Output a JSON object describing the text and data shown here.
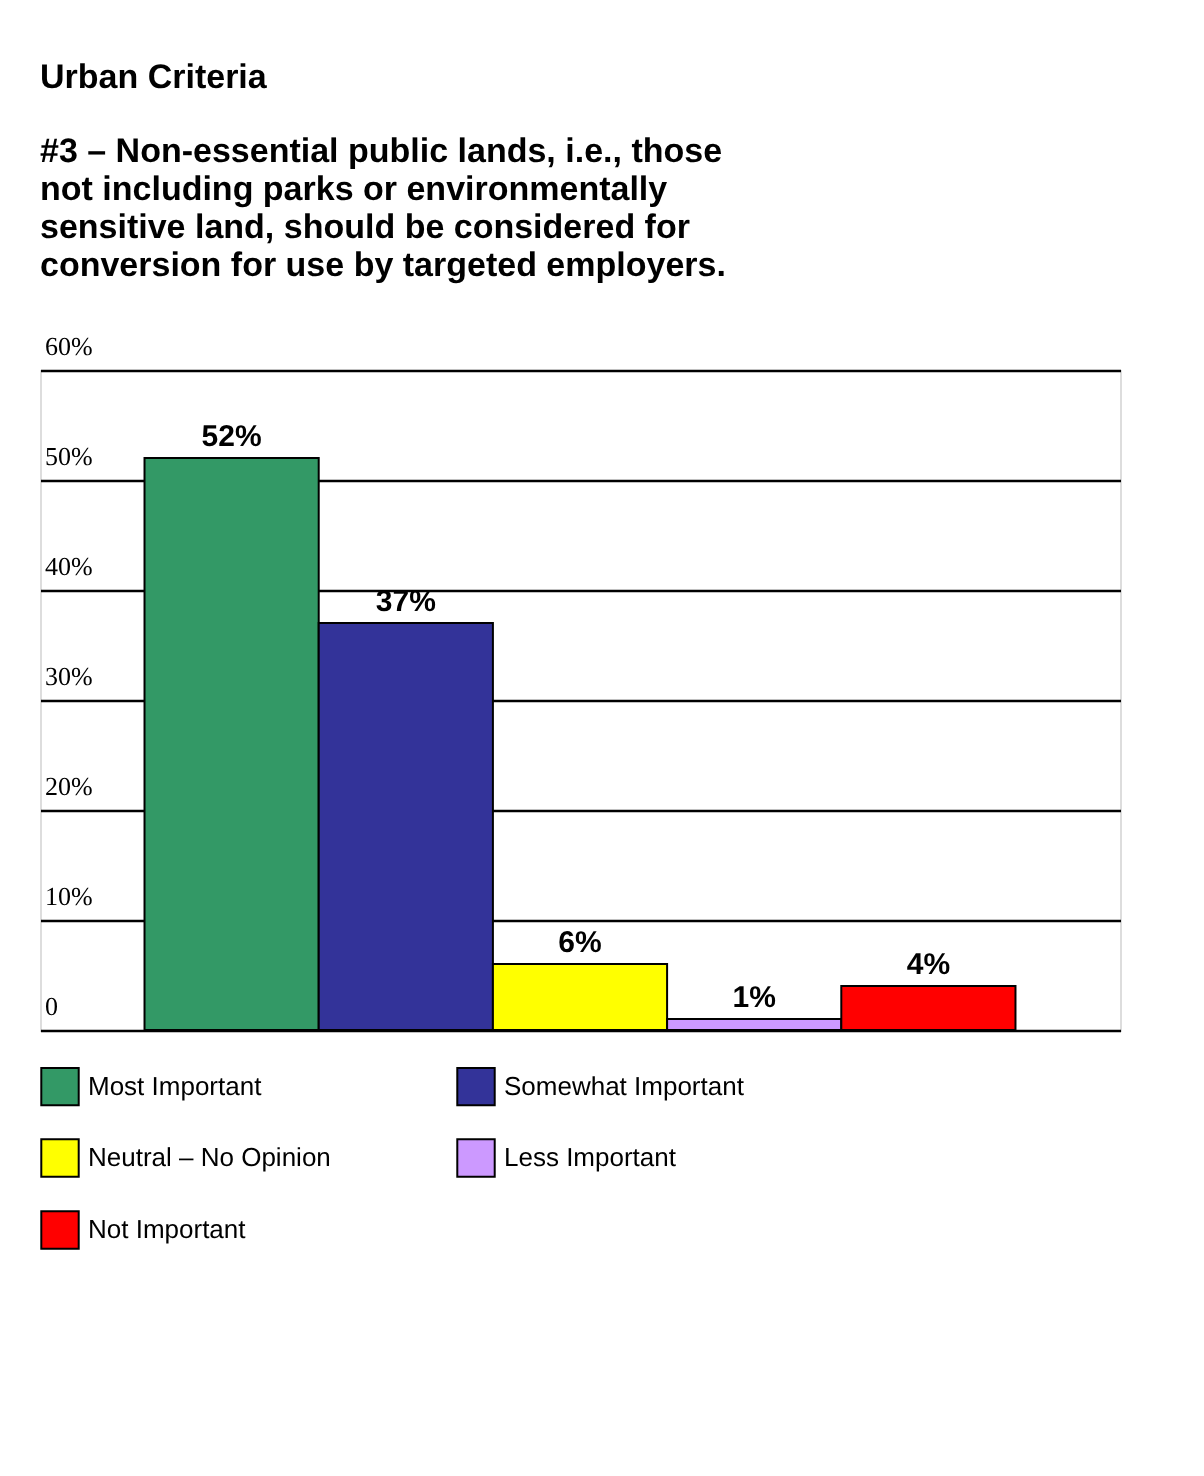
{
  "chart_data": {
    "type": "bar",
    "title": "Urban Criteria",
    "subtitle": "#3 – Non-essential public lands, i.e., those not including parks or environmentally sensitive land, should be considered for conversion for use by targeted employers.",
    "categories": [
      null
    ],
    "series": [
      {
        "name": "Most Important",
        "color": "#339966",
        "values": [
          52
        ],
        "value_labels": [
          "52%"
        ]
      },
      {
        "name": "Somewhat Important",
        "color": "#333399",
        "values": [
          37
        ],
        "value_labels": [
          "37%"
        ]
      },
      {
        "name": "Neutral – No Opinion",
        "color": "#ffff00",
        "values": [
          6
        ],
        "value_labels": [
          "6%"
        ]
      },
      {
        "name": "Less Important",
        "color": "#cc99ff",
        "values": [
          1
        ],
        "value_labels": [
          "1%"
        ]
      },
      {
        "name": "Not Important",
        "color": "#ff0000",
        "values": [
          4
        ],
        "value_labels": [
          "4%"
        ]
      }
    ],
    "ylim": [
      0,
      60
    ],
    "yticks": [
      0,
      {
        "value": 10,
        "label": "10%"
      },
      {
        "value": 20,
        "label": "20%"
      },
      {
        "value": 30,
        "label": "30%"
      },
      {
        "value": 40,
        "label": "40%"
      },
      {
        "value": 50,
        "label": "50%"
      },
      {
        "value": 60,
        "label": "60%"
      }
    ],
    "grid": "y",
    "legend": "bottom"
  }
}
